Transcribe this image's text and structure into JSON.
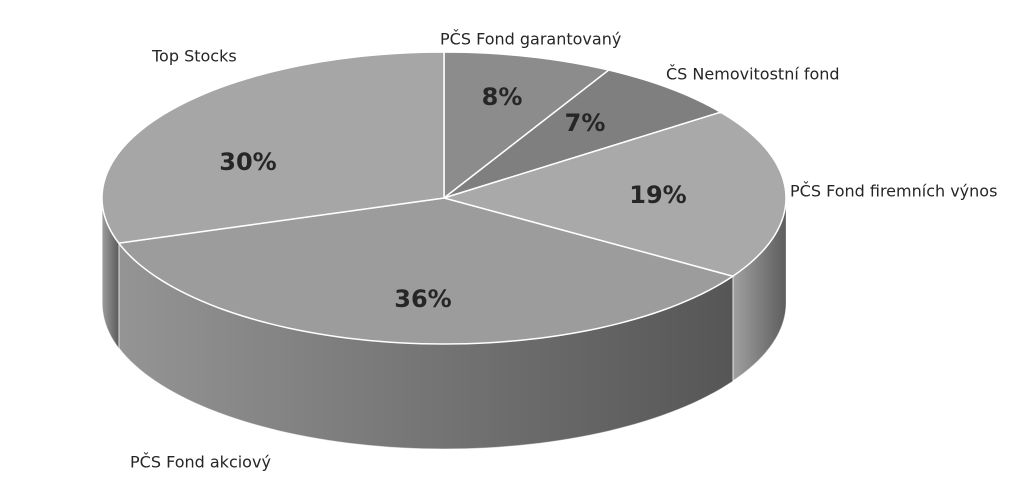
{
  "chart_data": {
    "type": "pie",
    "categories": [
      "PČS Fond garantovaný",
      "ČS Nemovitostní fond",
      "PČS Fond firemních výnos",
      "PČS Fond akciový",
      "Top Stocks"
    ],
    "values": [
      8,
      7,
      19,
      36,
      30
    ],
    "value_labels": [
      "8%",
      "7%",
      "19%",
      "36%",
      "30%"
    ],
    "colors": [
      "#8c8c8c",
      "#7f7f7f",
      "#a9a9a9",
      "#9c9c9c",
      "#a6a6a6"
    ]
  }
}
